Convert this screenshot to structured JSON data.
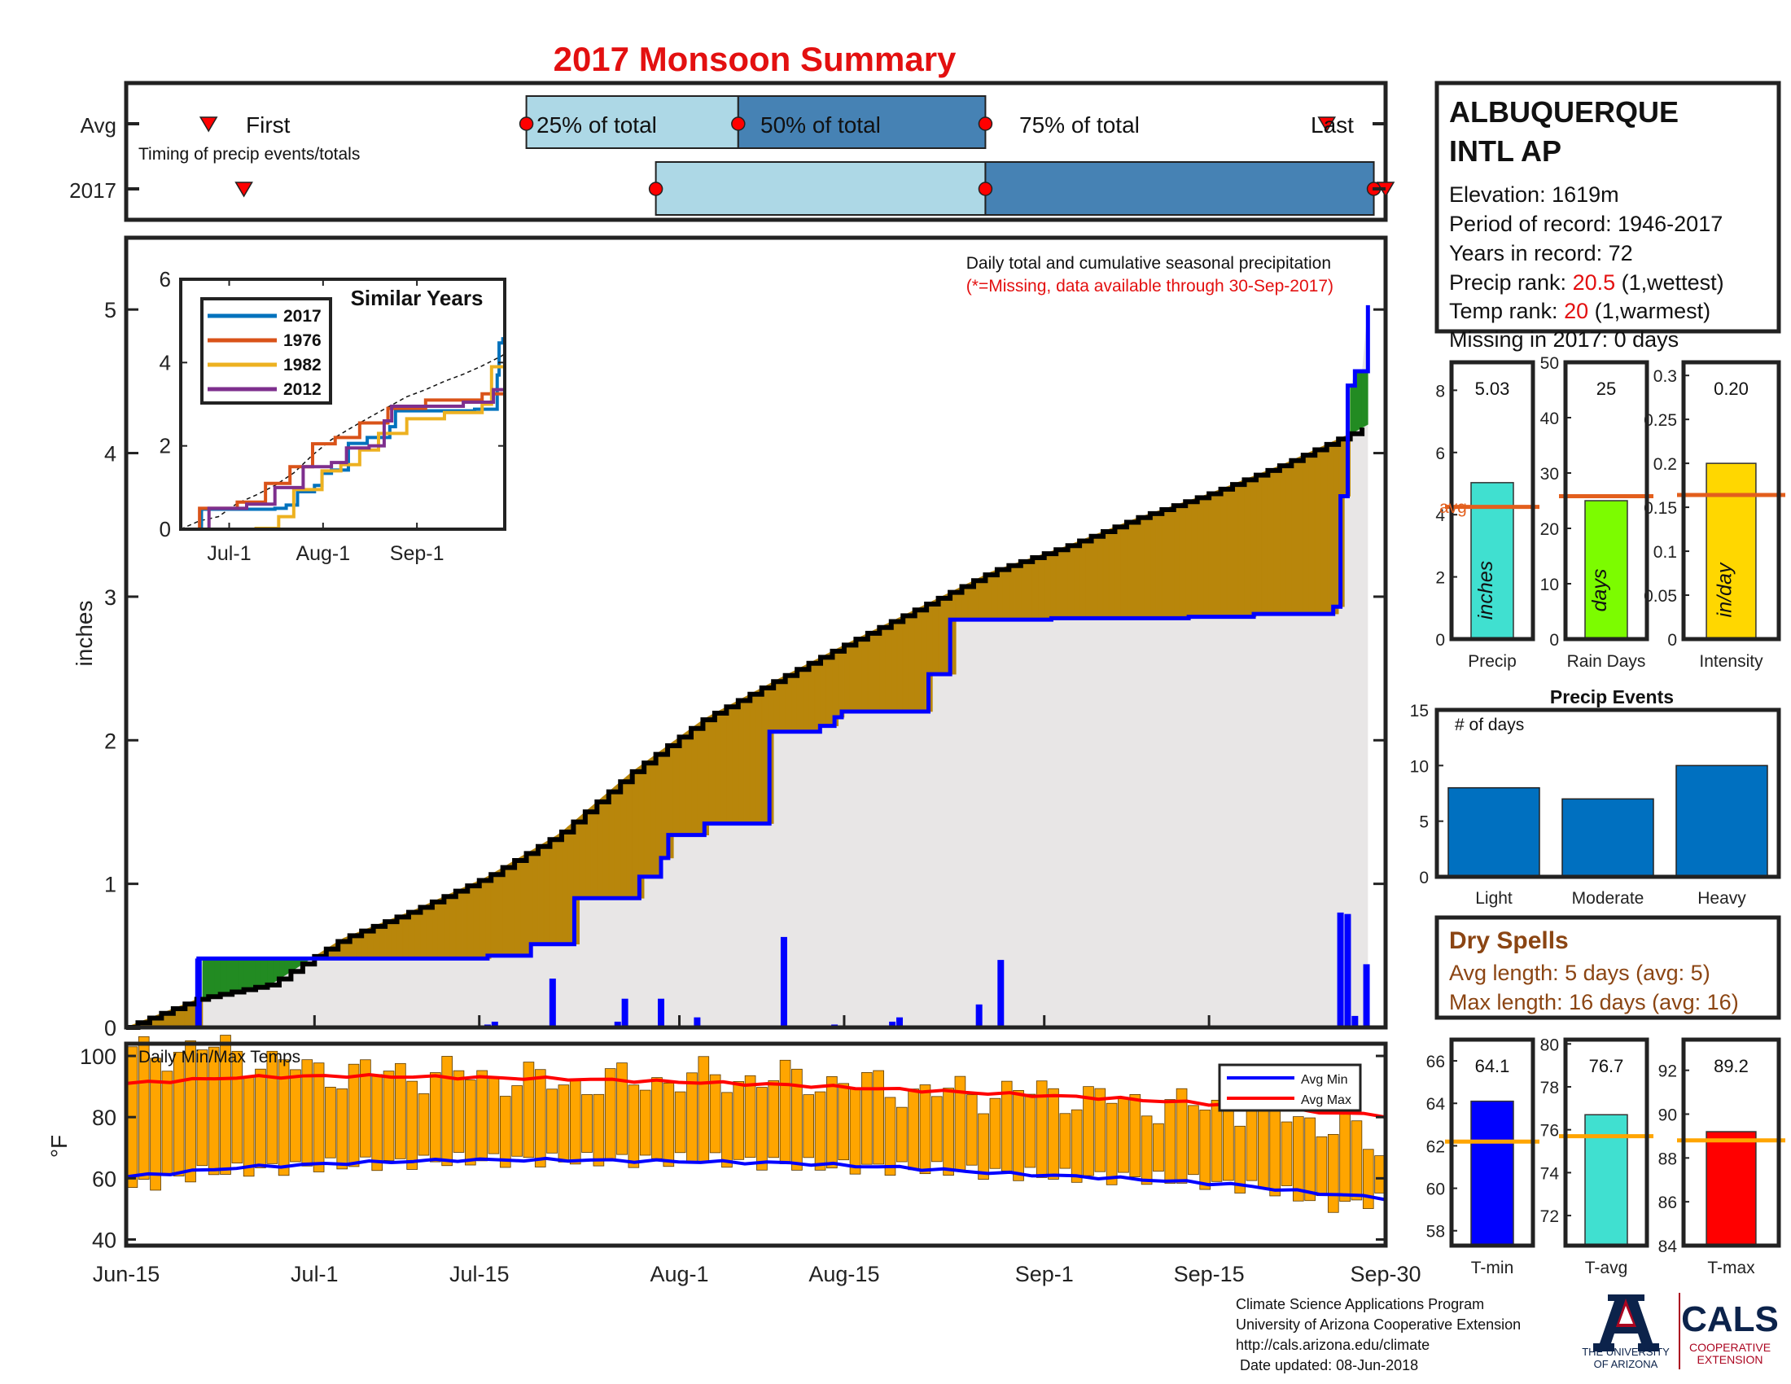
{
  "title": "2017 Monsoon Summary",
  "timing": {
    "row_labels": [
      "Avg",
      "2017"
    ],
    "first_label": "First",
    "last_label": "Last",
    "q25_label": "25% of total",
    "q50_label": "50% of total",
    "q75_label": "75% of total",
    "note": "Timing of precip events/totals",
    "avg": {
      "first": "2017-06-22",
      "q25": "2017-07-19",
      "q50": "2017-08-06",
      "q75": "2017-08-27",
      "last": "2017-09-25"
    },
    "y2017": {
      "first": "2017-06-25",
      "q25": "2017-07-30",
      "q50": "2017-08-27",
      "q75": "2017-09-29",
      "last": "2017-09-30"
    }
  },
  "station": {
    "name_line1": "ALBUQUERQUE",
    "name_line2": "INTL AP",
    "elevation": "Elevation: 1619m",
    "period": "Period of record: 1946-2017",
    "years": "Years in record: 72",
    "precip_rank_label": "Precip rank: ",
    "precip_rank_value": "20.5",
    "precip_rank_suffix": " (1,wettest)",
    "temp_rank_label": "Temp rank: ",
    "temp_rank_value": "20",
    "temp_rank_suffix": " (1,warmest)",
    "missing": "Missing in 2017: 0 days"
  },
  "main": {
    "note_line1": "Daily total and cumulative seasonal precipitation",
    "note_line2": "(*=Missing, data available through 30-Sep-2017)",
    "ylabel": "inches",
    "xticks": [
      "Jun-15",
      "Jul-1",
      "Jul-15",
      "Aug-1",
      "Aug-15",
      "Sep-1",
      "Sep-15",
      "Sep-30"
    ],
    "xtick_dates": [
      "2017-06-15",
      "2017-07-01",
      "2017-07-15",
      "2017-08-01",
      "2017-08-15",
      "2017-09-01",
      "2017-09-15",
      "2017-09-30"
    ],
    "yticks": [
      "0",
      "1",
      "2",
      "3",
      "4",
      "5"
    ],
    "colors": {
      "above_avg": "#228b22",
      "below_avg": "#b8860b",
      "observed": "#0000ff",
      "avg_line": "#000000",
      "fill": "#e8e6e6"
    }
  },
  "similar": {
    "title": "Similar Years",
    "xticks": [
      "Jul-1",
      "Aug-1",
      "Sep-1"
    ],
    "yticks": [
      "0",
      "2",
      "4",
      "6"
    ],
    "legend": [
      "2017",
      "1976",
      "1982",
      "2012"
    ],
    "colors": [
      "#0072bd",
      "#d95319",
      "#edb120",
      "#7e2f8e"
    ]
  },
  "temps": {
    "title": "Daily Min/Max Temps",
    "ylabel": "°F",
    "yticks": [
      "40",
      "60",
      "80",
      "100"
    ],
    "legend": [
      "Avg Min",
      "Avg Max"
    ],
    "colors": {
      "bars": "#ffa500",
      "avg_min": "#0000ff",
      "avg_max": "#ff0000"
    }
  },
  "stats": {
    "precip": {
      "label": "Precip",
      "unit": "inches",
      "value_text": "5.03",
      "value": 5.03,
      "avg": 4.25,
      "yticks": [
        "0",
        "2",
        "4",
        "6",
        "8"
      ],
      "color": "#40e0d0",
      "avg_label": "avg"
    },
    "rain_days": {
      "label": "Rain Days",
      "unit": "days",
      "value_text": "25",
      "value": 25,
      "avg": 25.8,
      "yticks": [
        "0",
        "10",
        "20",
        "30",
        "40",
        "50"
      ],
      "color": "#7cfc00"
    },
    "intensity": {
      "label": "Intensity",
      "unit": "in/day",
      "value_text": "0.20",
      "value": 0.2,
      "avg": 0.164,
      "yticks": [
        "0",
        "0.05",
        "0.1",
        "0.15",
        "0.2",
        "0.25",
        "0.3"
      ],
      "color": "#ffd700"
    },
    "avg_line_color": "#e35f1d"
  },
  "events": {
    "title": "Precip Events",
    "ylabel": "# of days",
    "yticks": [
      "0",
      "5",
      "10",
      "15"
    ],
    "color": "#0070c0"
  },
  "dry_spells": {
    "title": "Dry Spells",
    "avg_length": "Avg length: 5 days (avg: 5)",
    "max_length": "Max length: 16 days (avg: 16)"
  },
  "temp_stats": {
    "tmin": {
      "label": "T-min",
      "value_text": "64.1",
      "value": 64.1,
      "avg": 62.2,
      "yticks": [
        "58",
        "60",
        "62",
        "64",
        "66"
      ],
      "color": "#0000ff"
    },
    "tavg": {
      "label": "T-avg",
      "value_text": "76.7",
      "value": 76.7,
      "avg": 75.7,
      "yticks": [
        "72",
        "74",
        "76",
        "78",
        "80"
      ],
      "color": "#40e0d0"
    },
    "tmax": {
      "label": "T-max",
      "value_text": "89.2",
      "value": 89.2,
      "avg": 88.8,
      "yticks": [
        "84",
        "86",
        "88",
        "90",
        "92"
      ],
      "color": "#ff0000"
    },
    "avg_line_color": "#ffa500"
  },
  "footer": {
    "line1": "Climate Science Applications Program",
    "line2": "University of Arizona Cooperative Extension",
    "line3": "http://cals.arizona.edu/climate",
    "line4": " Date updated: 08-Jun-2018",
    "ua_line1": "THE UNIVERSITY",
    "ua_line2": "OF ARIZONA",
    "cals": "CALS",
    "cals_sub1": "COOPERATIVE",
    "cals_sub2": "EXTENSION"
  },
  "chart_data": [
    {
      "type": "area",
      "title": "Daily total and cumulative seasonal precipitation",
      "ylabel": "inches",
      "xlim": [
        "2017-06-15",
        "2017-09-30"
      ],
      "ylim": [
        0,
        5.5
      ],
      "cumulative_2017": [
        [
          0,
          0
        ],
        [
          9,
          0
        ],
        [
          10,
          0.48
        ],
        [
          49,
          0.48
        ],
        [
          50,
          0.5
        ],
        [
          55,
          0.5
        ],
        [
          56,
          0.58
        ],
        [
          61,
          0.58
        ],
        [
          62,
          0.9
        ],
        [
          70,
          0.9
        ],
        [
          71,
          1.05
        ],
        [
          73,
          1.05
        ],
        [
          74,
          1.18
        ],
        [
          75,
          1.34
        ],
        [
          79,
          1.34
        ],
        [
          80,
          1.42
        ],
        [
          88,
          1.42
        ],
        [
          89,
          2.06
        ],
        [
          95,
          2.06
        ],
        [
          96,
          2.1
        ],
        [
          98,
          2.16
        ],
        [
          99,
          2.2
        ],
        [
          110,
          2.2
        ],
        [
          111,
          2.46
        ],
        [
          113,
          2.46
        ],
        [
          114,
          2.84
        ],
        [
          127,
          2.84
        ],
        [
          128,
          2.85
        ],
        [
          146,
          2.85
        ],
        [
          147,
          2.86
        ],
        [
          155,
          2.86
        ],
        [
          156,
          2.88
        ],
        [
          167,
          2.93
        ],
        [
          168,
          3.7
        ],
        [
          169,
          4.47
        ],
        [
          170,
          4.57
        ],
        [
          171,
          4.57
        ],
        [
          171.8,
          5.03
        ]
      ],
      "cumulative_avg": [
        [
          0,
          0
        ],
        [
          10,
          0.2
        ],
        [
          20,
          0.3
        ],
        [
          30,
          0.62
        ],
        [
          40,
          0.82
        ],
        [
          50,
          1.05
        ],
        [
          60,
          1.35
        ],
        [
          70,
          1.78
        ],
        [
          80,
          2.15
        ],
        [
          90,
          2.42
        ],
        [
          100,
          2.68
        ],
        [
          110,
          2.93
        ],
        [
          120,
          3.18
        ],
        [
          130,
          3.35
        ],
        [
          140,
          3.55
        ],
        [
          150,
          3.72
        ],
        [
          160,
          3.92
        ],
        [
          170,
          4.15
        ],
        [
          171.8,
          4.2
        ]
      ],
      "daily_precip": [
        [
          10,
          0.48
        ],
        [
          50,
          0.02
        ],
        [
          51,
          0.04
        ],
        [
          59,
          0.34
        ],
        [
          68,
          0.04
        ],
        [
          69,
          0.2
        ],
        [
          74,
          0.2
        ],
        [
          79,
          0.07
        ],
        [
          91,
          0.63
        ],
        [
          98,
          0.02
        ],
        [
          106,
          0.04
        ],
        [
          107,
          0.07
        ],
        [
          118,
          0.16
        ],
        [
          121,
          0.47
        ],
        [
          150,
          0.01
        ],
        [
          168,
          0.8
        ],
        [
          169,
          0.79
        ],
        [
          170,
          0.08
        ],
        [
          171.6,
          0.44
        ]
      ],
      "day_offset_origin": "Jun-15",
      "xticks": [
        "Jun-15",
        "Jul-1",
        "Jul-15",
        "Aug-1",
        "Aug-15",
        "Sep-1",
        "Sep-15",
        "Sep-30"
      ]
    },
    {
      "type": "line",
      "title": "Similar Years",
      "xticks": [
        "Jul-1",
        "Aug-1",
        "Sep-1"
      ],
      "ylim": [
        0,
        6
      ],
      "series": [
        {
          "name": "2017",
          "values": [
            [
              0,
              0
            ],
            [
              10,
              0
            ],
            [
              11,
              0.48
            ],
            [
              50,
              0.5
            ],
            [
              56,
              0.58
            ],
            [
              62,
              0.9
            ],
            [
              71,
              1.05
            ],
            [
              75,
              1.34
            ],
            [
              80,
              1.42
            ],
            [
              89,
              2.06
            ],
            [
              99,
              2.2
            ],
            [
              111,
              2.46
            ],
            [
              114,
              2.84
            ],
            [
              156,
              2.88
            ],
            [
              168,
              3.7
            ],
            [
              169,
              4.47
            ],
            [
              171,
              4.57
            ],
            [
              172,
              5.03
            ]
          ]
        },
        {
          "name": "1976",
          "values": [
            [
              0,
              0
            ],
            [
              9,
              0
            ],
            [
              10,
              0.5
            ],
            [
              30,
              0.65
            ],
            [
              45,
              1.1
            ],
            [
              58,
              1.5
            ],
            [
              70,
              2.05
            ],
            [
              82,
              2.2
            ],
            [
              95,
              2.55
            ],
            [
              110,
              2.9
            ],
            [
              130,
              3.1
            ],
            [
              160,
              3.25
            ],
            [
              172,
              3.35
            ]
          ]
        },
        {
          "name": "1982",
          "values": [
            [
              0,
              0
            ],
            [
              40,
              0.02
            ],
            [
              52,
              0.3
            ],
            [
              60,
              0.95
            ],
            [
              75,
              1.4
            ],
            [
              85,
              1.55
            ],
            [
              95,
              1.9
            ],
            [
              105,
              2.3
            ],
            [
              120,
              2.65
            ],
            [
              140,
              2.8
            ],
            [
              160,
              3.0
            ],
            [
              165,
              3.9
            ],
            [
              172,
              3.95
            ]
          ]
        },
        {
          "name": "2012",
          "values": [
            [
              0,
              0
            ],
            [
              14,
              0
            ],
            [
              15,
              0.5
            ],
            [
              35,
              0.6
            ],
            [
              50,
              1.0
            ],
            [
              65,
              1.5
            ],
            [
              80,
              1.6
            ],
            [
              88,
              1.95
            ],
            [
              100,
              2.0
            ],
            [
              108,
              2.6
            ],
            [
              112,
              2.95
            ],
            [
              150,
              3.05
            ],
            [
              165,
              3.05
            ],
            [
              166,
              3.35
            ],
            [
              172,
              3.4
            ]
          ]
        }
      ]
    },
    {
      "type": "bar",
      "title": "Daily Min/Max Temps",
      "ylabel": "°F",
      "ylim": [
        38,
        104
      ],
      "avg_min": [
        [
          0,
          60.5
        ],
        [
          15,
          63.5
        ],
        [
          30,
          65
        ],
        [
          45,
          66
        ],
        [
          60,
          66
        ],
        [
          75,
          65.5
        ],
        [
          90,
          65
        ],
        [
          105,
          63.5
        ],
        [
          120,
          61.5
        ],
        [
          135,
          60
        ],
        [
          150,
          58
        ],
        [
          160,
          55.5
        ],
        [
          171,
          53.5
        ]
      ],
      "avg_max": [
        [
          0,
          91
        ],
        [
          15,
          93
        ],
        [
          30,
          93.5
        ],
        [
          45,
          93
        ],
        [
          60,
          92.5
        ],
        [
          75,
          91.5
        ],
        [
          90,
          90.5
        ],
        [
          105,
          89
        ],
        [
          120,
          87.5
        ],
        [
          135,
          86
        ],
        [
          150,
          84
        ],
        [
          160,
          82
        ],
        [
          171,
          80.5
        ]
      ],
      "daily_max_anchor": [
        [
          0,
          100
        ],
        [
          10,
          103
        ],
        [
          25,
          95
        ],
        [
          45,
          94
        ],
        [
          60,
          91
        ],
        [
          80,
          93
        ],
        [
          95,
          92
        ],
        [
          110,
          88
        ],
        [
          125,
          88
        ],
        [
          140,
          84
        ],
        [
          155,
          83
        ],
        [
          165,
          77
        ],
        [
          171,
          70
        ]
      ],
      "daily_min_anchor": [
        [
          0,
          57
        ],
        [
          10,
          62
        ],
        [
          25,
          64
        ],
        [
          45,
          66
        ],
        [
          60,
          66
        ],
        [
          80,
          66
        ],
        [
          95,
          64
        ],
        [
          110,
          63
        ],
        [
          125,
          61
        ],
        [
          140,
          60
        ],
        [
          155,
          57
        ],
        [
          165,
          51
        ],
        [
          171,
          53
        ]
      ]
    },
    {
      "type": "bar",
      "title": "Precip Events",
      "categories": [
        "Light",
        "Moderate",
        "Heavy"
      ],
      "values": [
        8,
        7,
        10
      ],
      "ylabel": "# of days",
      "ylim": [
        0,
        15
      ]
    }
  ]
}
